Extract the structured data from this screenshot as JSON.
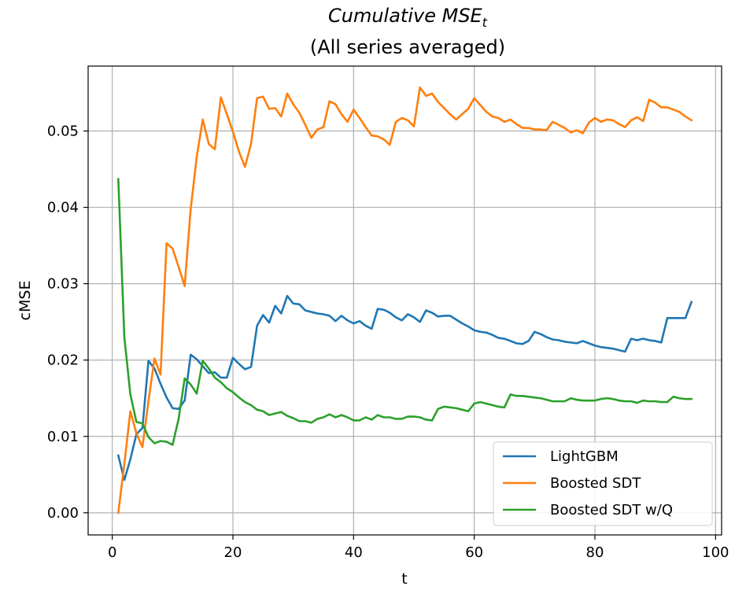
{
  "chart_data": {
    "type": "line",
    "title": "Cumulative MSE",
    "title_subscript": "t",
    "subtitle": "(All series averaged)",
    "xlabel": "t",
    "ylabel": "cMSE",
    "xlim": [
      -4,
      101
    ],
    "ylim": [
      -0.0029,
      0.0585
    ],
    "xticks": [
      0,
      20,
      40,
      60,
      80,
      100
    ],
    "xtick_labels": [
      "0",
      "20",
      "40",
      "60",
      "80",
      "100"
    ],
    "yticks": [
      0.0,
      0.01,
      0.02,
      0.03,
      0.04,
      0.05
    ],
    "ytick_labels": [
      "0.00",
      "0.01",
      "0.02",
      "0.03",
      "0.04",
      "0.05"
    ],
    "grid": true,
    "legend_position": "lower-right",
    "x": [
      1,
      2,
      3,
      4,
      5,
      6,
      7,
      8,
      9,
      10,
      11,
      12,
      13,
      14,
      15,
      16,
      17,
      18,
      19,
      20,
      21,
      22,
      23,
      24,
      25,
      26,
      27,
      28,
      29,
      30,
      31,
      32,
      33,
      34,
      35,
      36,
      37,
      38,
      39,
      40,
      41,
      42,
      43,
      44,
      45,
      46,
      47,
      48,
      49,
      50,
      51,
      52,
      53,
      54,
      55,
      56,
      57,
      58,
      59,
      60,
      61,
      62,
      63,
      64,
      65,
      66,
      67,
      68,
      69,
      70,
      71,
      72,
      73,
      74,
      75,
      76,
      77,
      78,
      79,
      80,
      81,
      82,
      83,
      84,
      85,
      86,
      87,
      88,
      89,
      90,
      91,
      92,
      93,
      94,
      95,
      96
    ],
    "series": [
      {
        "name": "LightGBM",
        "color": "#1f77b4",
        "values": [
          0.0075,
          0.0043,
          0.007,
          0.0103,
          0.0111,
          0.0199,
          0.0189,
          0.0169,
          0.0151,
          0.0137,
          0.0136,
          0.0147,
          0.0207,
          0.0201,
          0.0192,
          0.0183,
          0.0184,
          0.0177,
          0.0177,
          0.0203,
          0.0195,
          0.0188,
          0.0191,
          0.0245,
          0.0259,
          0.0249,
          0.0271,
          0.0261,
          0.0284,
          0.0274,
          0.0273,
          0.0265,
          0.0263,
          0.0261,
          0.026,
          0.0258,
          0.0251,
          0.0258,
          0.0252,
          0.0248,
          0.0251,
          0.0245,
          0.0241,
          0.0267,
          0.0266,
          0.0262,
          0.0256,
          0.0252,
          0.026,
          0.0256,
          0.025,
          0.0265,
          0.0262,
          0.0257,
          0.0258,
          0.0258,
          0.0253,
          0.0248,
          0.0244,
          0.0239,
          0.0237,
          0.0236,
          0.0233,
          0.0229,
          0.0228,
          0.0225,
          0.0222,
          0.0221,
          0.0225,
          0.0237,
          0.0234,
          0.023,
          0.0227,
          0.0226,
          0.0224,
          0.0223,
          0.0222,
          0.0225,
          0.0222,
          0.0219,
          0.0217,
          0.0216,
          0.0215,
          0.0213,
          0.0211,
          0.0228,
          0.0226,
          0.0228,
          0.0226,
          0.0225,
          0.0223,
          0.0255,
          0.0255,
          0.0255,
          0.0255,
          0.0276
        ]
      },
      {
        "name": "Boosted SDT",
        "color": "#ff7f0e",
        "values": [
          0.0,
          0.0064,
          0.0133,
          0.0104,
          0.0086,
          0.0146,
          0.0202,
          0.0181,
          0.0353,
          0.0346,
          0.0322,
          0.0297,
          0.0398,
          0.0466,
          0.0515,
          0.0483,
          0.0476,
          0.0544,
          0.0522,
          0.0499,
          0.0473,
          0.0453,
          0.0483,
          0.0543,
          0.0545,
          0.0529,
          0.053,
          0.0519,
          0.0549,
          0.0535,
          0.0524,
          0.0508,
          0.0491,
          0.0502,
          0.0505,
          0.0539,
          0.0535,
          0.0522,
          0.0512,
          0.0528,
          0.0517,
          0.0505,
          0.0494,
          0.0493,
          0.0489,
          0.0482,
          0.0512,
          0.0517,
          0.0514,
          0.0506,
          0.0557,
          0.0546,
          0.0549,
          0.0538,
          0.053,
          0.0522,
          0.0515,
          0.0522,
          0.0529,
          0.0543,
          0.0534,
          0.0525,
          0.0519,
          0.0517,
          0.0512,
          0.0515,
          0.0509,
          0.0504,
          0.0504,
          0.0502,
          0.0502,
          0.0501,
          0.0512,
          0.0508,
          0.0504,
          0.0498,
          0.0501,
          0.0497,
          0.0511,
          0.0517,
          0.0512,
          0.0515,
          0.0514,
          0.0509,
          0.0505,
          0.0514,
          0.0518,
          0.0513,
          0.0541,
          0.0537,
          0.0531,
          0.0531,
          0.0528,
          0.0525,
          0.0519,
          0.0514
        ]
      },
      {
        "name": "Boosted SDT w/Q",
        "color": "#2ca02c",
        "values": [
          0.0437,
          0.023,
          0.0155,
          0.0119,
          0.0117,
          0.0099,
          0.0091,
          0.0094,
          0.0093,
          0.0089,
          0.0123,
          0.0176,
          0.0168,
          0.0156,
          0.0199,
          0.0189,
          0.0177,
          0.0171,
          0.0163,
          0.0158,
          0.0151,
          0.0145,
          0.0141,
          0.0135,
          0.0133,
          0.0128,
          0.013,
          0.0132,
          0.0127,
          0.0124,
          0.012,
          0.012,
          0.0118,
          0.0123,
          0.0125,
          0.0129,
          0.0125,
          0.0128,
          0.0125,
          0.0121,
          0.0121,
          0.0125,
          0.0122,
          0.0128,
          0.0125,
          0.0125,
          0.0123,
          0.0123,
          0.0126,
          0.0126,
          0.0125,
          0.0122,
          0.0121,
          0.0136,
          0.0139,
          0.0138,
          0.0137,
          0.0135,
          0.0133,
          0.0143,
          0.0145,
          0.0143,
          0.0141,
          0.0139,
          0.0138,
          0.0155,
          0.0153,
          0.0153,
          0.0152,
          0.0151,
          0.015,
          0.0148,
          0.0146,
          0.0146,
          0.0146,
          0.015,
          0.0148,
          0.0147,
          0.0147,
          0.0147,
          0.0149,
          0.015,
          0.0149,
          0.0147,
          0.0146,
          0.0146,
          0.0144,
          0.0147,
          0.0146,
          0.0146,
          0.0145,
          0.0145,
          0.0152,
          0.015,
          0.0149,
          0.0149
        ]
      }
    ]
  }
}
